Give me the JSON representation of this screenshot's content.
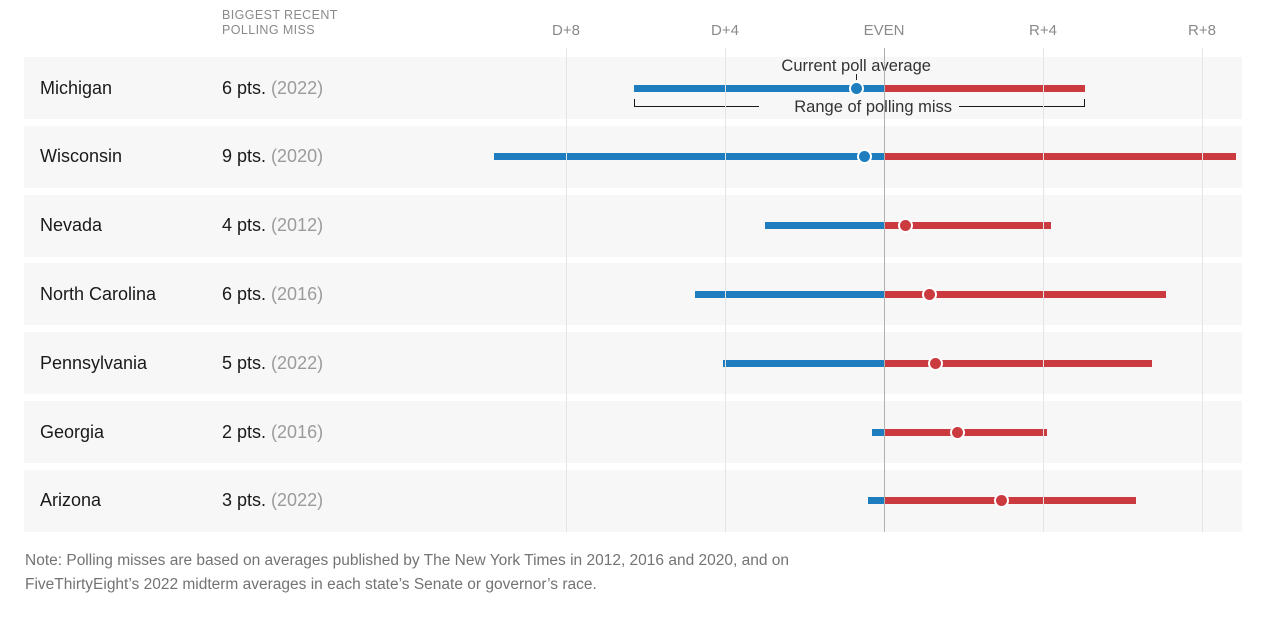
{
  "header": {
    "column_label_line1": "BIGGEST RECENT",
    "column_label_line2": "POLLING MISS"
  },
  "chart_data": {
    "type": "dot-range",
    "title": "",
    "x_ticks": [
      {
        "label": "D+8",
        "value": -8
      },
      {
        "label": "D+4",
        "value": -4
      },
      {
        "label": "EVEN",
        "value": 0
      },
      {
        "label": "R+4",
        "value": 4
      },
      {
        "label": "R+8",
        "value": 8
      }
    ],
    "x_range_note": "negative = Democratic lead, positive = Republican lead",
    "categories": [
      "Michigan",
      "Wisconsin",
      "Nevada",
      "North Carolina",
      "Pennsylvania",
      "Georgia",
      "Arizona"
    ],
    "rows": [
      {
        "state": "Michigan",
        "miss": "6 pts.",
        "year": "(2022)",
        "low": -6.3,
        "avg": -0.7,
        "high": 5.05
      },
      {
        "state": "Wisconsin",
        "miss": "9 pts.",
        "year": "(2020)",
        "low": -9.8,
        "avg": -0.5,
        "high": 8.85
      },
      {
        "state": "Nevada",
        "miss": "4 pts.",
        "year": "(2012)",
        "low": -3.0,
        "avg": 0.55,
        "high": 4.2
      },
      {
        "state": "North Carolina",
        "miss": "6 pts.",
        "year": "(2016)",
        "low": -4.75,
        "avg": 1.15,
        "high": 7.1
      },
      {
        "state": "Pennsylvania",
        "miss": "5 pts.",
        "year": "(2022)",
        "low": -4.05,
        "avg": 1.3,
        "high": 6.75
      },
      {
        "state": "Georgia",
        "miss": "2 pts.",
        "year": "(2016)",
        "low": -0.3,
        "avg": 1.85,
        "high": 4.1
      },
      {
        "state": "Arizona",
        "miss": "3 pts.",
        "year": "(2022)",
        "low": -0.4,
        "avg": 2.95,
        "high": 6.35
      }
    ],
    "annotations": {
      "current_poll_average": "Current poll average",
      "range_of_polling_miss": "Range of polling miss"
    },
    "legend_position": "first-row-inline",
    "grid": true
  },
  "note": {
    "line1": "Note: Polling misses are based on averages published by The New York Times in 2012, 2016 and 2020, and on",
    "line2": "FiveThirtyEight’s 2022 midterm averages in each state’s Senate or governor’s race."
  },
  "colors": {
    "dem": "#1d7dbf",
    "rep": "#ca3a3e",
    "band": "#f7f7f7",
    "grid": "#e4e4e4",
    "even_grid": "#b0b0b0",
    "ink": "#1a1a1a"
  }
}
